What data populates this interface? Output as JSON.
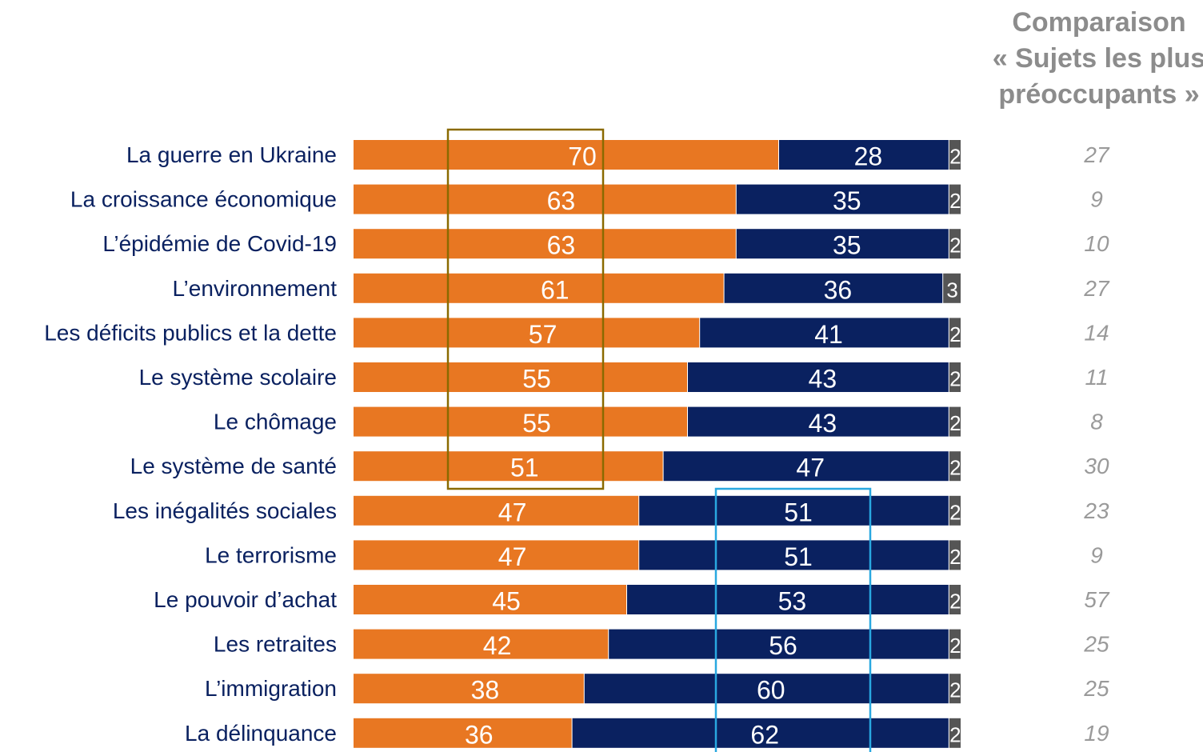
{
  "header": {
    "line1": "Comparaison",
    "line2": "« Sujets les plus",
    "line3": "préoccupants »"
  },
  "colors": {
    "series1": "#e87722",
    "series2": "#0a2160",
    "series3": "#555555",
    "highlight_top": "#8a6a00",
    "highlight_bottom": "#29a8e0",
    "comparison_text": "#9a9a9a",
    "label_text": "#0a2160"
  },
  "chart_data": {
    "type": "bar",
    "orientation": "horizontal",
    "stacked": true,
    "xlim": [
      0,
      100
    ],
    "categories": [
      "La guerre en Ukraine",
      "La croissance économique",
      "L’épidémie de Covid-19",
      "L’environnement",
      "Les déficits publics et la dette",
      "Le système scolaire",
      "Le chômage",
      "Le système de santé",
      "Les inégalités sociales",
      "Le terrorisme",
      "Le pouvoir d’achat",
      "Les retraites",
      "L’immigration",
      "La délinquance"
    ],
    "series": [
      {
        "values": [
          70,
          63,
          63,
          61,
          57,
          55,
          55,
          51,
          47,
          47,
          45,
          42,
          38,
          36
        ]
      },
      {
        "values": [
          28,
          35,
          35,
          36,
          41,
          43,
          43,
          47,
          51,
          51,
          53,
          56,
          60,
          62
        ]
      },
      {
        "values": [
          2,
          2,
          2,
          3,
          2,
          2,
          2,
          2,
          2,
          2,
          2,
          2,
          2,
          2
        ]
      }
    ],
    "comparison_values": [
      27,
      9,
      10,
      27,
      14,
      11,
      8,
      30,
      23,
      9,
      57,
      25,
      25,
      19
    ]
  }
}
